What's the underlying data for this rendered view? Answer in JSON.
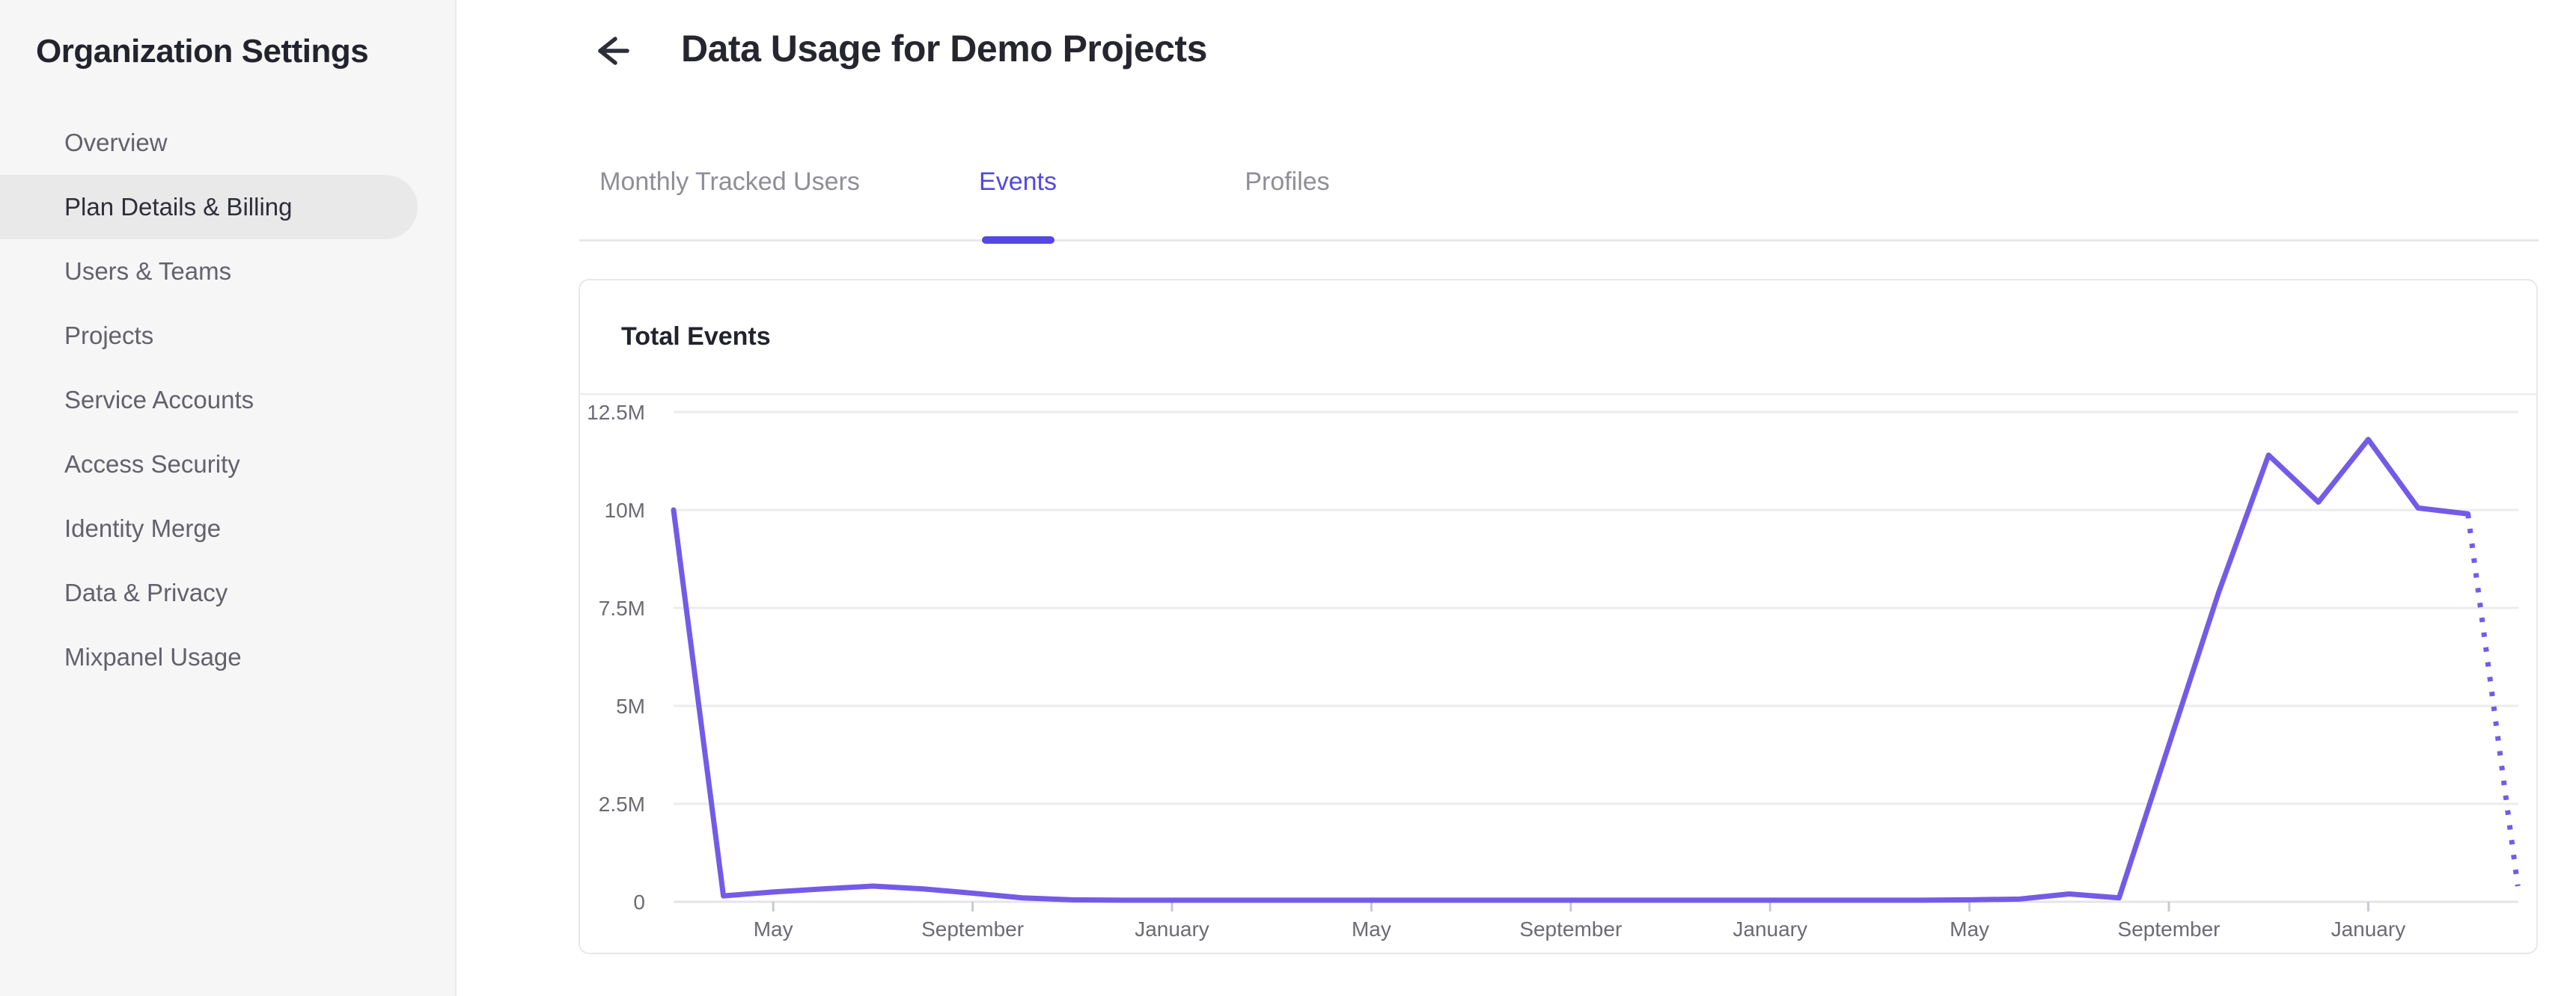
{
  "sidebar": {
    "title": "Organization Settings",
    "items": [
      {
        "id": "overview",
        "label": "Overview",
        "active": false
      },
      {
        "id": "plan-details-billing",
        "label": "Plan Details & Billing",
        "active": true
      },
      {
        "id": "users-teams",
        "label": "Users & Teams",
        "active": false
      },
      {
        "id": "projects",
        "label": "Projects",
        "active": false
      },
      {
        "id": "service-accounts",
        "label": "Service Accounts",
        "active": false
      },
      {
        "id": "access-security",
        "label": "Access Security",
        "active": false
      },
      {
        "id": "identity-merge",
        "label": "Identity Merge",
        "active": false
      },
      {
        "id": "data-privacy",
        "label": "Data & Privacy",
        "active": false
      },
      {
        "id": "mixpanel-usage",
        "label": "Mixpanel Usage",
        "active": false
      }
    ]
  },
  "header": {
    "back_icon": "arrow-left",
    "title": "Data Usage for Demo Projects"
  },
  "tabs": [
    {
      "id": "monthly-tracked-users",
      "label": "Monthly Tracked Users",
      "active": false
    },
    {
      "id": "events",
      "label": "Events",
      "active": true
    },
    {
      "id": "profiles",
      "label": "Profiles",
      "active": false
    }
  ],
  "card": {
    "title": "Total Events"
  },
  "chart_data": {
    "type": "line",
    "title": "Total Events",
    "ylabel": "",
    "xlabel": "",
    "ylim_millions": [
      0,
      12.5
    ],
    "y_tick_labels": [
      "0",
      "2.5M",
      "5M",
      "7.5M",
      "10M",
      "12.5M"
    ],
    "grid": "horizontal",
    "legend_position": "none",
    "x_is_monthly": true,
    "x_tick_labels": [
      "May",
      "September",
      "January",
      "May",
      "September",
      "January",
      "May",
      "September",
      "January"
    ],
    "x_tick_month_indices": [
      2,
      6,
      10,
      14,
      18,
      22,
      26,
      30,
      34
    ],
    "series": [
      {
        "name": "Total Events",
        "values_millions": [
          10,
          0.15,
          0.25,
          0.33,
          0.4,
          0.33,
          0.22,
          0.1,
          0.05,
          0.04,
          0.04,
          0.04,
          0.04,
          0.04,
          0.04,
          0.04,
          0.04,
          0.04,
          0.04,
          0.04,
          0.04,
          0.04,
          0.04,
          0.04,
          0.04,
          0.04,
          0.05,
          0.07,
          0.2,
          0.1,
          4.0,
          7.9,
          11.4,
          10.2,
          11.8,
          10.05,
          9.9,
          0.4
        ],
        "last_segment_projected_dotted": true
      }
    ],
    "colors": {
      "line": "#745be7",
      "gridline": "#ececee",
      "axis_line": "#e4e4e6",
      "tick": "#c9c9ce",
      "axis_label": "#6b6b72"
    }
  },
  "accent_colors": {
    "active_tab": "#5348e2",
    "sidebar_pill": "#e9e9ea",
    "dark_text": "#26262e"
  }
}
